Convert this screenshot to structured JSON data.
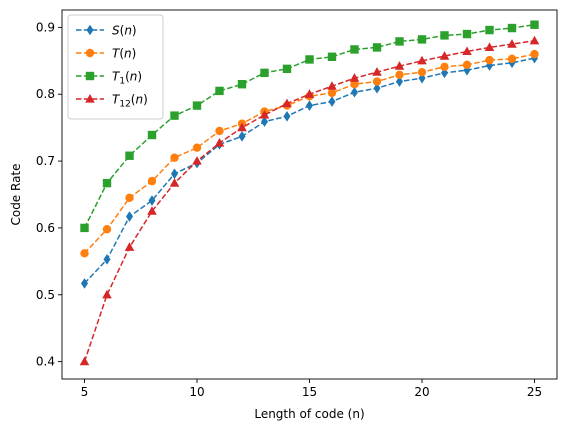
{
  "chart_data": {
    "type": "line",
    "xlabel": "Length of code (n)",
    "ylabel": "Code Rate",
    "xlim": [
      4.0,
      26.0
    ],
    "ylim": [
      0.374,
      0.926
    ],
    "xticks": [
      5,
      10,
      15,
      20,
      25
    ],
    "yticks": [
      0.4,
      0.5,
      0.6,
      0.7,
      0.8,
      0.9
    ],
    "grid": false,
    "legend_position": "top-left",
    "x": [
      5,
      6,
      7,
      8,
      9,
      10,
      11,
      12,
      13,
      14,
      15,
      16,
      17,
      18,
      19,
      20,
      21,
      22,
      23,
      24,
      25
    ],
    "series": [
      {
        "name": "S(n)",
        "name_base": "S",
        "name_sub": "",
        "color": "#1f77b4",
        "marker": "diamond",
        "values": [
          0.517,
          0.553,
          0.617,
          0.641,
          0.681,
          0.697,
          0.725,
          0.737,
          0.759,
          0.767,
          0.783,
          0.789,
          0.803,
          0.809,
          0.819,
          0.824,
          0.832,
          0.836,
          0.843,
          0.847,
          0.854
        ]
      },
      {
        "name": "T(n)",
        "name_base": "T",
        "name_sub": "",
        "color": "#ff7f0e",
        "marker": "circle",
        "values": [
          0.562,
          0.598,
          0.645,
          0.67,
          0.705,
          0.72,
          0.745,
          0.756,
          0.774,
          0.783,
          0.797,
          0.802,
          0.815,
          0.819,
          0.829,
          0.833,
          0.841,
          0.844,
          0.851,
          0.853,
          0.86
        ]
      },
      {
        "name": "T1(n)",
        "name_base": "T",
        "name_sub": "1",
        "color": "#2ca02c",
        "marker": "square",
        "values": [
          0.6,
          0.667,
          0.708,
          0.739,
          0.768,
          0.783,
          0.805,
          0.815,
          0.832,
          0.838,
          0.852,
          0.856,
          0.867,
          0.87,
          0.879,
          0.882,
          0.888,
          0.89,
          0.896,
          0.899,
          0.904
        ]
      },
      {
        "name": "T12(n)",
        "name_base": "T",
        "name_sub": "12",
        "color": "#d62728",
        "marker": "triangle",
        "values": [
          0.4,
          0.5,
          0.571,
          0.625,
          0.667,
          0.7,
          0.727,
          0.75,
          0.769,
          0.786,
          0.8,
          0.812,
          0.824,
          0.833,
          0.842,
          0.85,
          0.857,
          0.864,
          0.87,
          0.875,
          0.88
        ]
      }
    ]
  }
}
